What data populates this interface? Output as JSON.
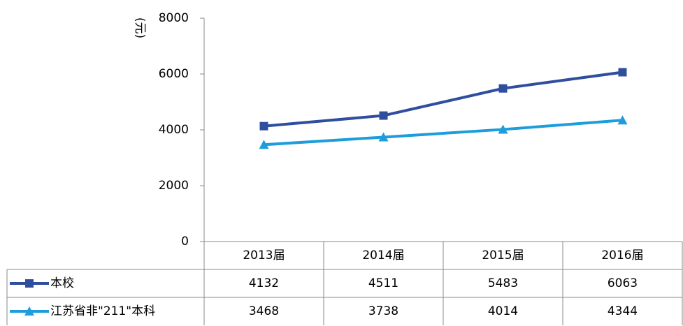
{
  "chart_data": {
    "type": "line",
    "y_label": "(元)",
    "categories": [
      "2013届",
      "2014届",
      "2015届",
      "2016届"
    ],
    "series": [
      {
        "name": "本校",
        "color": "#2f4e9e",
        "marker": "square",
        "values": [
          4132,
          4511,
          5483,
          6063
        ]
      },
      {
        "name": "江苏省非\"211\"本科",
        "color": "#1d9ddb",
        "marker": "triangle",
        "values": [
          3468,
          3738,
          4014,
          4344
        ]
      }
    ],
    "ylim": [
      0,
      8000
    ],
    "yticks": [
      0,
      2000,
      4000,
      6000,
      8000
    ],
    "grid": false,
    "data_table": true
  }
}
